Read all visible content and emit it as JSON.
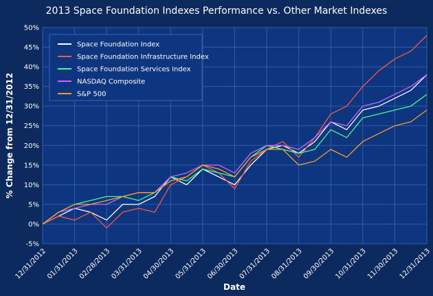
{
  "chart_data": {
    "type": "line",
    "title": "2013 Space Foundation Indexes Performance vs. Other Market Indexes",
    "xlabel": "Date",
    "ylabel": "% Change from 12/31/2012",
    "ylim": [
      -5,
      50
    ],
    "y_ticks": [
      "-5%",
      "0%",
      "5%",
      "10%",
      "15%",
      "20%",
      "25%",
      "30%",
      "35%",
      "40%",
      "45%",
      "50%"
    ],
    "y_tick_values": [
      -5,
      0,
      5,
      10,
      15,
      20,
      25,
      30,
      35,
      40,
      45,
      50
    ],
    "x_ticks": [
      "12/31/2012",
      "01/31/2013",
      "02/28/2013",
      "03/31/2013",
      "04/30/2013",
      "05/31/2013",
      "06/30/2013",
      "07/31/2013",
      "08/31/2013",
      "09/30/2013",
      "10/31/2013",
      "11/30/2013",
      "12/31/2013"
    ],
    "x_tick_values": [
      0,
      1,
      2,
      3,
      4,
      5,
      6,
      7,
      8,
      9,
      10,
      11,
      12
    ],
    "grid": true,
    "legend_position": "top-left",
    "x": [
      0,
      0.5,
      1,
      1.5,
      2,
      2.5,
      3,
      3.5,
      4,
      4.5,
      5,
      5.5,
      6,
      6.5,
      7,
      7.5,
      8,
      8.5,
      9,
      9.5,
      10,
      10.5,
      11,
      11.5,
      12
    ],
    "series": [
      {
        "name": "Space Foundation Index",
        "color": "#ffffff",
        "values": [
          0,
          2,
          4,
          3,
          1,
          5,
          5,
          7,
          12,
          10,
          14,
          12,
          10,
          15,
          19,
          20,
          18,
          21,
          26,
          24,
          29,
          30,
          32,
          34,
          38
        ]
      },
      {
        "name": "Space Foundation Infrastructure Index",
        "color": "#ff5a3c",
        "values": [
          0,
          2,
          1,
          3,
          -1,
          3,
          4,
          3,
          10,
          12,
          15,
          13,
          9,
          16,
          19,
          21,
          17,
          22,
          28,
          30,
          35,
          39,
          42,
          44,
          48
        ]
      },
      {
        "name": "Space Foundation Services Index",
        "color": "#44ff88",
        "values": [
          0,
          3,
          5,
          6,
          7,
          7,
          6,
          8,
          12,
          11,
          14,
          13,
          12,
          17,
          20,
          19,
          18,
          19,
          24,
          22,
          27,
          28,
          29,
          30,
          33
        ]
      },
      {
        "name": "NASDAQ Composite",
        "color": "#cc66ff",
        "values": [
          0,
          3,
          4,
          5,
          5,
          7,
          8,
          8,
          12,
          13,
          15,
          15,
          13,
          18,
          20,
          20,
          19,
          22,
          26,
          25,
          30,
          31,
          33,
          35,
          38
        ]
      },
      {
        "name": "S&P 500",
        "color": "#ffa020",
        "values": [
          0,
          3,
          5,
          5,
          6,
          7,
          8,
          8,
          11,
          12,
          15,
          14,
          12,
          17,
          19,
          19,
          15,
          16,
          19,
          17,
          21,
          23,
          25,
          26,
          29
        ]
      }
    ]
  }
}
